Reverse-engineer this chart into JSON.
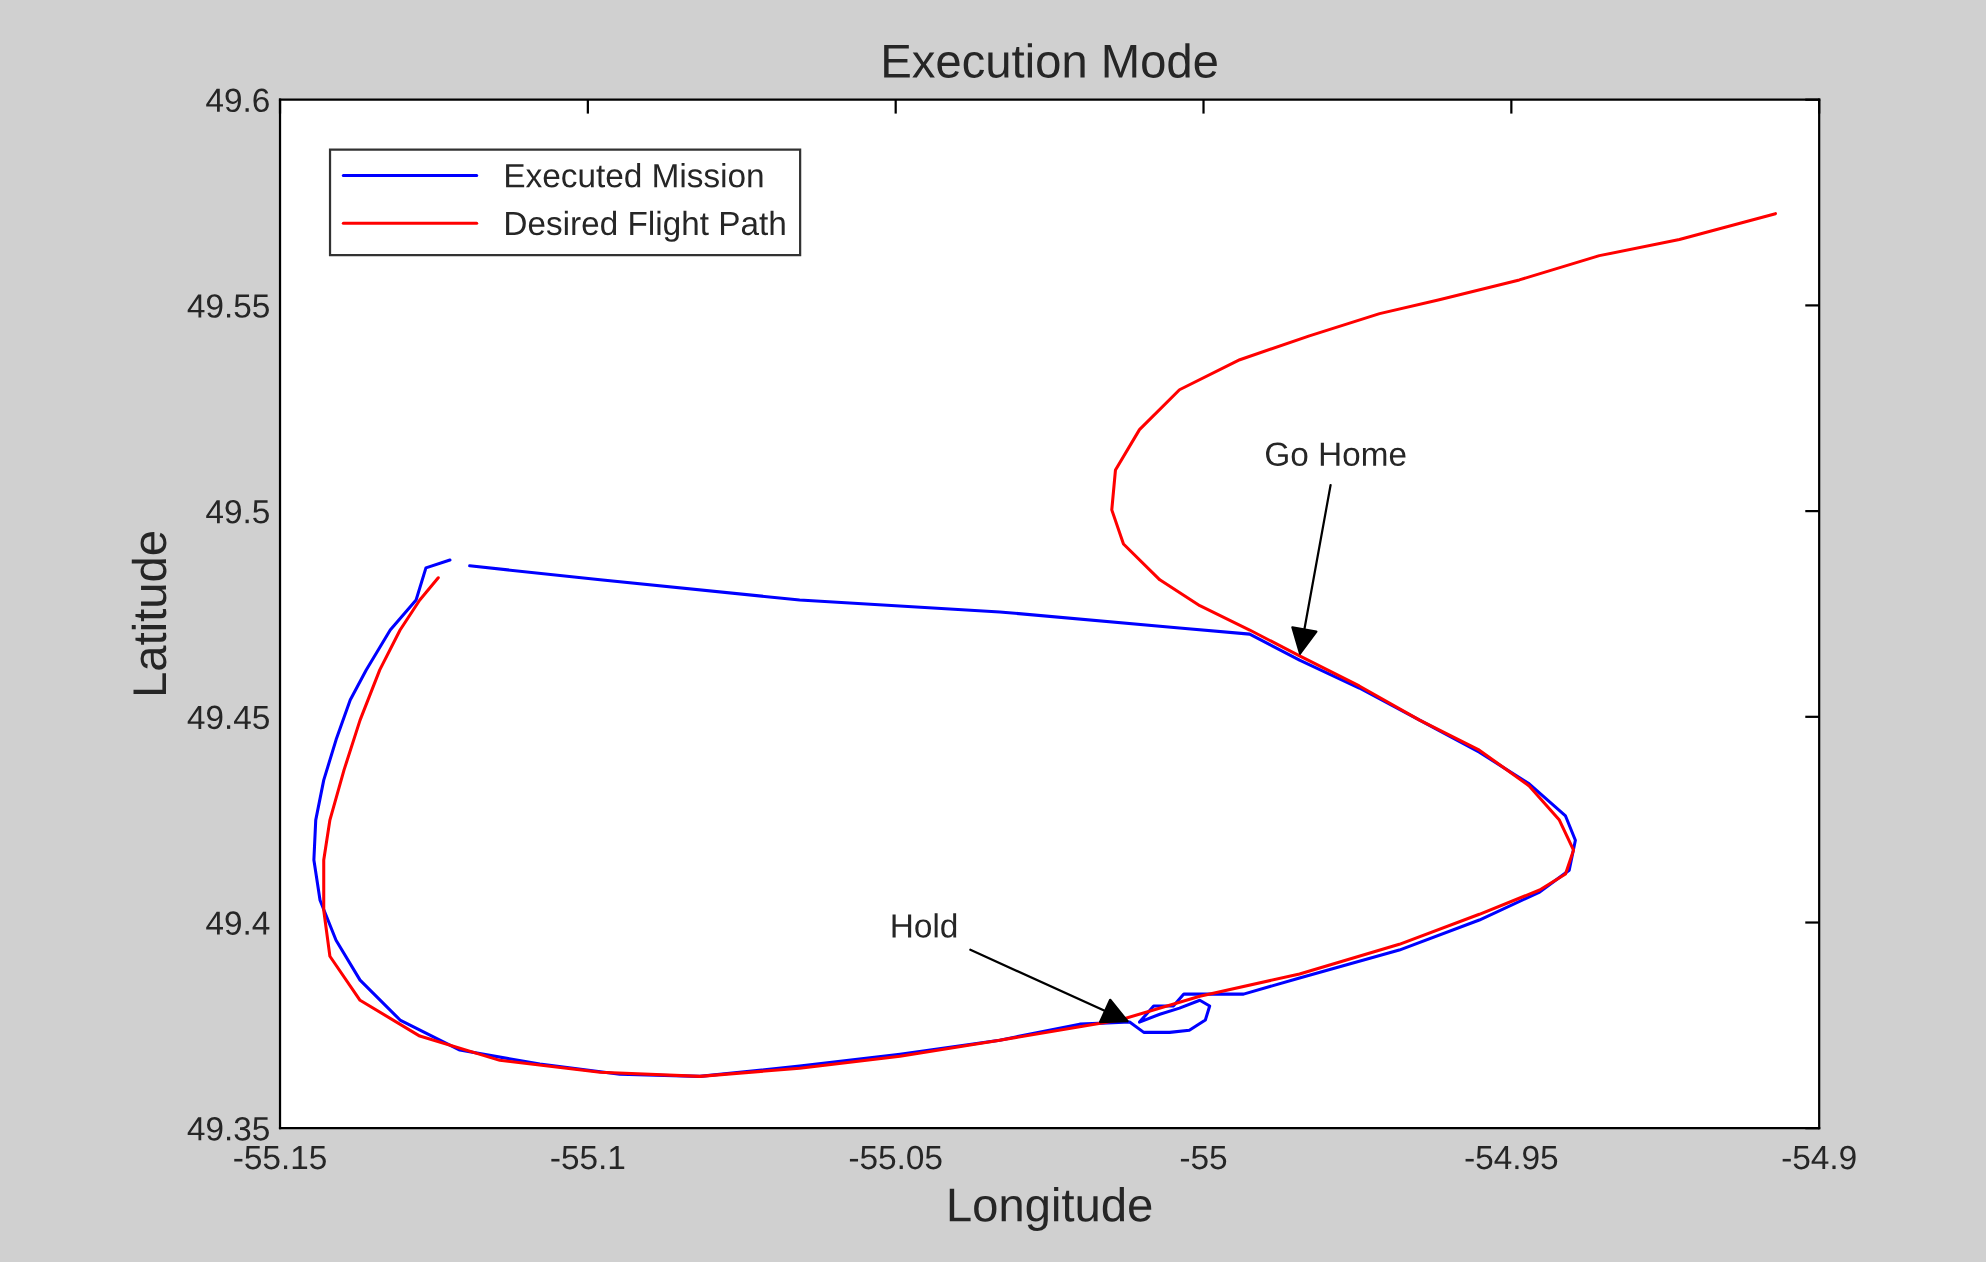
{
  "chart_data": {
    "type": "line",
    "title": "Execution Mode",
    "xlabel": "Longitude",
    "ylabel": "Latitude",
    "xlim": [
      -55.15,
      -54.9
    ],
    "ylim": [
      49.35,
      49.6
    ],
    "xticks": [
      -55.15,
      -55.1,
      -55.05,
      -55,
      -54.95,
      -54.9
    ],
    "yticks": [
      49.35,
      49.4,
      49.45,
      49.5,
      49.55,
      49.6
    ],
    "grid": false,
    "legend": "top left",
    "marker": "none",
    "line_style": "solid",
    "annotations": [
      {
        "text": "Go Home",
        "x": -54.9844,
        "y": 49.4648
      },
      {
        "text": "Hold",
        "x": -55.012,
        "y": 49.3758
      }
    ],
    "series": [
      {
        "name": "Executed Mission",
        "color": "#0000ff",
        "x": [
          -55.1224,
          -55.1263,
          -55.1279,
          -55.1321,
          -55.136,
          -55.1386,
          -55.1409,
          -55.1429,
          -55.1442,
          -55.1445,
          -55.1435,
          -55.1409,
          -55.137,
          -55.1305,
          -55.1208,
          -55.1078,
          -55.0948,
          -55.0818,
          -55.0656,
          -55.0493,
          -55.0331,
          -55.0201,
          -55.012,
          -55.0097,
          -55.0055,
          -55.0023,
          -54.9997,
          -54.999,
          -55.0006,
          -55.0039,
          -55.0071,
          -55.0104,
          -55.0081,
          -55.0049,
          -55.0032,
          -55.0,
          -54.9935,
          -54.9844,
          -54.9682,
          -54.9552,
          -54.9454,
          -54.9406,
          -54.9396,
          -54.9412,
          -54.9471,
          -54.9552,
          -54.9649,
          -54.9747,
          -54.9844,
          -54.9925,
          -55.0039,
          -55.0331,
          -55.0656,
          -55.098,
          -55.1192
        ],
        "values": [
          49.4881,
          49.4862,
          49.4784,
          49.4711,
          49.4614,
          49.4541,
          49.4444,
          49.4346,
          49.4249,
          49.4152,
          49.4054,
          49.3957,
          49.386,
          49.3763,
          49.369,
          49.3656,
          49.3631,
          49.3626,
          49.3651,
          49.368,
          49.3714,
          49.3753,
          49.3758,
          49.3733,
          49.3733,
          49.3738,
          49.3763,
          49.3797,
          49.3811,
          49.3792,
          49.3777,
          49.3758,
          49.3797,
          49.3797,
          49.3826,
          49.3826,
          49.3826,
          49.3865,
          49.3933,
          49.4006,
          49.4074,
          49.4127,
          49.42,
          49.4259,
          49.4337,
          49.4414,
          49.4492,
          49.457,
          49.4638,
          49.4701,
          49.4716,
          49.4755,
          49.4784,
          49.4833,
          49.4867
        ]
      },
      {
        "name": "Desired Flight Path",
        "color": "#ff0000",
        "x": [
          -54.9071,
          -54.9227,
          -54.9357,
          -54.9487,
          -54.9617,
          -54.9714,
          -54.9828,
          -54.9941,
          -55.0039,
          -55.0104,
          -55.0143,
          -55.0149,
          -55.013,
          -55.0071,
          -55.0006,
          -54.9925,
          -54.9844,
          -54.9747,
          -54.9649,
          -54.9552,
          -54.9471,
          -54.9422,
          -54.9399,
          -54.9412,
          -54.9454,
          -54.9552,
          -54.9682,
          -54.9844,
          -55.0006,
          -55.0136,
          -55.0331,
          -55.0493,
          -55.0656,
          -55.0818,
          -55.098,
          -55.1143,
          -55.1273,
          -55.137,
          -55.1419,
          -55.1429,
          -55.1429,
          -55.1419,
          -55.1396,
          -55.137,
          -55.1338,
          -55.1305,
          -55.1273,
          -55.1243
        ],
        "values": [
          49.5723,
          49.566,
          49.5621,
          49.5562,
          49.5514,
          49.548,
          49.5426,
          49.5368,
          49.5295,
          49.5198,
          49.51,
          49.5003,
          49.492,
          49.4833,
          49.477,
          49.4711,
          49.4648,
          49.4575,
          49.4492,
          49.4419,
          49.4332,
          49.4249,
          49.4176,
          49.4118,
          49.4079,
          49.402,
          49.3947,
          49.3875,
          49.3821,
          49.3763,
          49.3714,
          49.3675,
          49.3646,
          49.3626,
          49.3636,
          49.3665,
          49.3724,
          49.3811,
          49.3918,
          49.403,
          49.4152,
          49.4249,
          49.4371,
          49.4492,
          49.4614,
          49.4711,
          49.4784,
          49.4838
        ]
      }
    ]
  }
}
